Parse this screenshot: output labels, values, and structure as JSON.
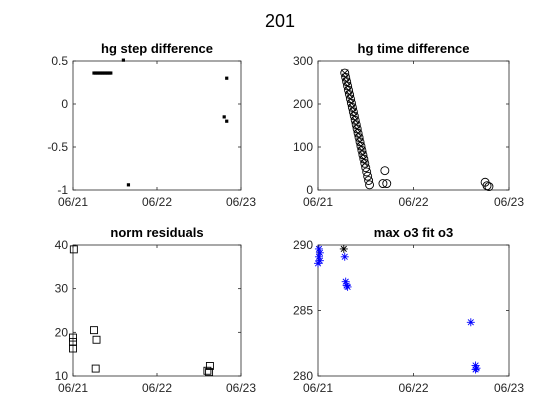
{
  "figure": {
    "title": "201"
  },
  "chart_data": [
    {
      "type": "scatter",
      "title": "hg step difference",
      "xlabel": "",
      "ylabel": "",
      "xlim": [
        0,
        2
      ],
      "ylim": [
        -1,
        0.5
      ],
      "xticks": [
        0,
        1,
        2
      ],
      "xtick_labels": [
        "06/21",
        "06/22",
        "06/23"
      ],
      "yticks": [
        -1,
        -0.5,
        0,
        0.5
      ],
      "ytick_labels": [
        "-1",
        "-0.5",
        "0",
        "0.5"
      ],
      "grid": false,
      "series": [
        {
          "marker": "square-small",
          "color": "#000000",
          "points": [
            [
              0.25,
              0.36
            ],
            [
              0.27,
              0.36
            ],
            [
              0.29,
              0.36
            ],
            [
              0.31,
              0.36
            ],
            [
              0.33,
              0.36
            ],
            [
              0.35,
              0.36
            ],
            [
              0.37,
              0.36
            ],
            [
              0.39,
              0.36
            ],
            [
              0.41,
              0.36
            ],
            [
              0.43,
              0.36
            ],
            [
              0.45,
              0.36
            ],
            [
              0.6,
              0.51
            ],
            [
              0.66,
              -0.94
            ],
            [
              1.83,
              0.3
            ],
            [
              1.8,
              -0.15
            ],
            [
              1.83,
              -0.2
            ]
          ]
        }
      ]
    },
    {
      "type": "scatter",
      "title": "hg time difference",
      "xlabel": "",
      "ylabel": "",
      "xlim": [
        0,
        2
      ],
      "ylim": [
        0,
        300
      ],
      "xticks": [
        0,
        1,
        2
      ],
      "xtick_labels": [
        "06/21",
        "06/22",
        "06/23"
      ],
      "yticks": [
        0,
        100,
        200,
        300
      ],
      "ytick_labels": [
        "0",
        "100",
        "200",
        "300"
      ],
      "grid": false,
      "series": [
        {
          "marker": "circle",
          "color": "#000000",
          "points": [
            [
              0.28,
              272
            ],
            [
              0.29,
              262
            ],
            [
              0.3,
              252
            ],
            [
              0.31,
              242
            ],
            [
              0.32,
              232
            ],
            [
              0.33,
              222
            ],
            [
              0.34,
              212
            ],
            [
              0.35,
              202
            ],
            [
              0.36,
              192
            ],
            [
              0.37,
              182
            ],
            [
              0.38,
              172
            ],
            [
              0.39,
              162
            ],
            [
              0.4,
              152
            ],
            [
              0.41,
              142
            ],
            [
              0.42,
              132
            ],
            [
              0.43,
              122
            ],
            [
              0.44,
              112
            ],
            [
              0.45,
              102
            ],
            [
              0.46,
              92
            ],
            [
              0.47,
              82
            ],
            [
              0.48,
              72
            ],
            [
              0.49,
              62
            ],
            [
              0.5,
              52
            ],
            [
              0.51,
              42
            ],
            [
              0.52,
              32
            ],
            [
              0.53,
              22
            ],
            [
              0.54,
              12
            ],
            [
              0.7,
              45
            ],
            [
              0.68,
              15
            ],
            [
              0.72,
              15
            ],
            [
              1.75,
              18
            ],
            [
              1.77,
              10
            ],
            [
              1.79,
              8
            ]
          ]
        },
        {
          "marker": "x",
          "color": "#000000",
          "points": [
            [
              0.28,
              272
            ],
            [
              0.29,
              262
            ],
            [
              0.3,
              252
            ],
            [
              0.31,
              242
            ],
            [
              0.32,
              232
            ],
            [
              0.33,
              222
            ],
            [
              0.34,
              212
            ],
            [
              0.35,
              202
            ],
            [
              0.36,
              192
            ],
            [
              0.37,
              182
            ],
            [
              0.38,
              172
            ],
            [
              0.39,
              162
            ],
            [
              0.4,
              152
            ],
            [
              0.41,
              142
            ],
            [
              0.42,
              132
            ],
            [
              0.43,
              122
            ],
            [
              0.44,
              112
            ],
            [
              0.45,
              102
            ],
            [
              0.46,
              92
            ],
            [
              0.47,
              82
            ],
            [
              0.48,
              72
            ],
            [
              0.49,
              62
            ]
          ]
        }
      ]
    },
    {
      "type": "scatter",
      "title": "norm residuals",
      "xlabel": "",
      "ylabel": "",
      "xlim": [
        0,
        2
      ],
      "ylim": [
        10,
        40
      ],
      "xticks": [
        0,
        1,
        2
      ],
      "xtick_labels": [
        "06/21",
        "06/22",
        "06/23"
      ],
      "yticks": [
        10,
        20,
        30,
        40
      ],
      "ytick_labels": [
        "10",
        "20",
        "30",
        "40"
      ],
      "grid": false,
      "series": [
        {
          "marker": "square",
          "color": "#000000",
          "points": [
            [
              0.0,
              18.8
            ],
            [
              0.0,
              17.8
            ],
            [
              0.0,
              16.3
            ],
            [
              0.01,
              39.0
            ],
            [
              0.25,
              20.5
            ],
            [
              0.28,
              18.3
            ],
            [
              0.27,
              11.7
            ],
            [
              1.6,
              11.2
            ],
            [
              1.62,
              10.9
            ],
            [
              1.63,
              12.3
            ]
          ]
        }
      ]
    },
    {
      "type": "scatter",
      "title": "max o3 fit o3",
      "xlabel": "",
      "ylabel": "",
      "xlim": [
        0,
        2
      ],
      "ylim": [
        280,
        290
      ],
      "xticks": [
        0,
        1,
        2
      ],
      "xtick_labels": [
        "06/21",
        "06/22",
        "06/23"
      ],
      "yticks": [
        280,
        285,
        290
      ],
      "ytick_labels": [
        "280",
        "285",
        "290"
      ],
      "grid": false,
      "series": [
        {
          "marker": "asterisk",
          "color": "#0000ff",
          "points": [
            [
              0.01,
              289.7
            ],
            [
              0.02,
              289.4
            ],
            [
              0.01,
              289.1
            ],
            [
              0.02,
              288.8
            ],
            [
              0.0,
              288.6
            ],
            [
              0.28,
              289.1
            ],
            [
              0.29,
              287.2
            ],
            [
              0.3,
              286.9
            ],
            [
              0.31,
              286.8
            ],
            [
              1.6,
              284.1
            ],
            [
              1.65,
              280.8
            ],
            [
              1.66,
              280.6
            ],
            [
              1.65,
              280.5
            ]
          ]
        },
        {
          "marker": "asterisk",
          "color": "#000000",
          "points": [
            [
              0.27,
              289.7
            ]
          ]
        }
      ]
    }
  ]
}
